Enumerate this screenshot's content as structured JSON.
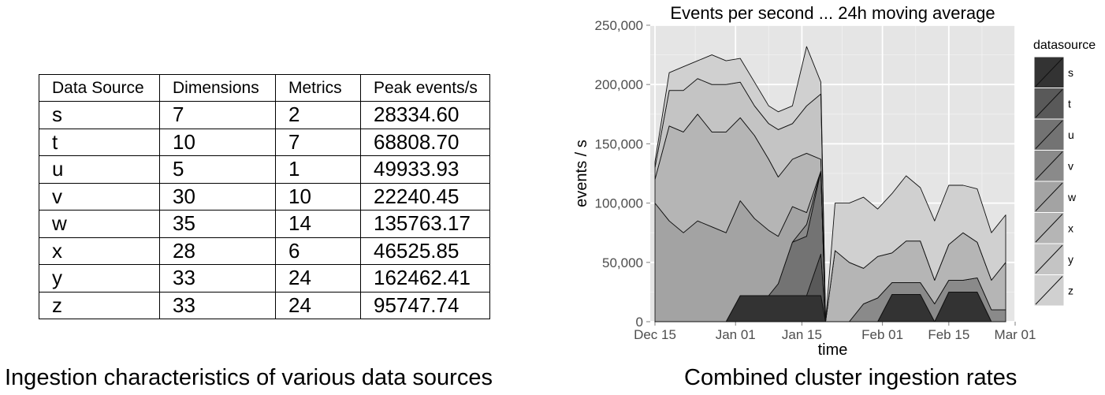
{
  "table": {
    "headers": [
      "Data Source",
      "Dimensions",
      "Metrics",
      "Peak events/s"
    ],
    "rows": [
      [
        "s",
        "7",
        "2",
        "28334.60"
      ],
      [
        "t",
        "10",
        "7",
        "68808.70"
      ],
      [
        "u",
        "5",
        "1",
        "49933.93"
      ],
      [
        "v",
        "30",
        "10",
        "22240.45"
      ],
      [
        "w",
        "35",
        "14",
        "135763.17"
      ],
      [
        "x",
        "28",
        "6",
        "46525.85"
      ],
      [
        "y",
        "33",
        "24",
        "162462.41"
      ],
      [
        "z",
        "33",
        "24",
        "95747.74"
      ]
    ]
  },
  "captions": {
    "left": "Ingestion characteristics of various data sources",
    "right": "Combined cluster ingestion rates"
  },
  "chart_data": {
    "type": "area",
    "stacked": true,
    "title": "Events per second ... 24h moving average",
    "xlabel": "time",
    "ylabel": "events / s",
    "ylim": [
      0,
      250000
    ],
    "xlim": [
      "2012-12-14",
      "2013-03-01"
    ],
    "x_ticks": [
      {
        "label": "Dec 15",
        "date": "2012-12-15"
      },
      {
        "label": "Jan 01",
        "date": "2013-01-01"
      },
      {
        "label": "Jan 15",
        "date": "2013-01-15"
      },
      {
        "label": "Feb 01",
        "date": "2013-02-01"
      },
      {
        "label": "Feb 15",
        "date": "2013-02-15"
      },
      {
        "label": "Mar 01",
        "date": "2013-03-01"
      }
    ],
    "y_ticks": [
      {
        "label": "0",
        "value": 0
      },
      {
        "label": "50,000",
        "value": 50000
      },
      {
        "label": "100,000",
        "value": 100000
      },
      {
        "label": "150,000",
        "value": 150000
      },
      {
        "label": "200,000",
        "value": 200000
      },
      {
        "label": "250,000",
        "value": 250000
      }
    ],
    "grid": true,
    "legend": {
      "title": "datasource",
      "position": "right"
    },
    "x": [
      "2012-12-15",
      "2012-12-18",
      "2012-12-21",
      "2012-12-24",
      "2012-12-27",
      "2012-12-30",
      "2013-01-02",
      "2013-01-05",
      "2013-01-08",
      "2013-01-10",
      "2013-01-13",
      "2013-01-16",
      "2013-01-19",
      "2013-01-20",
      "2013-01-22",
      "2013-01-25",
      "2013-01-28",
      "2013-01-31",
      "2013-02-03",
      "2013-02-06",
      "2013-02-09",
      "2013-02-12",
      "2013-02-15",
      "2013-02-18",
      "2013-02-21",
      "2013-02-24",
      "2013-02-27"
    ],
    "series": [
      {
        "name": "s",
        "color": "#333333",
        "values": [
          0,
          0,
          0,
          0,
          0,
          0,
          22000,
          22000,
          22000,
          22000,
          22000,
          22000,
          22000,
          0,
          0,
          0,
          0,
          0,
          23000,
          23000,
          23000,
          0,
          25000,
          25000,
          25000,
          0,
          0
        ]
      },
      {
        "name": "t",
        "color": "#595959",
        "values": [
          0,
          0,
          0,
          0,
          0,
          0,
          0,
          0,
          0,
          0,
          0,
          0,
          35000,
          0,
          0,
          0,
          0,
          0,
          0,
          0,
          0,
          0,
          0,
          0,
          0,
          0,
          0
        ]
      },
      {
        "name": "u",
        "color": "#737373",
        "values": [
          0,
          0,
          0,
          0,
          0,
          0,
          0,
          0,
          0,
          10000,
          45000,
          50000,
          70000,
          0,
          0,
          0,
          0,
          0,
          0,
          0,
          0,
          0,
          0,
          0,
          0,
          0,
          0
        ]
      },
      {
        "name": "v",
        "color": "#8a8a8a",
        "values": [
          0,
          0,
          0,
          0,
          0,
          0,
          0,
          0,
          0,
          0,
          0,
          10000,
          0,
          0,
          0,
          0,
          15000,
          20000,
          10000,
          10000,
          10000,
          15000,
          10000,
          10000,
          12000,
          10000,
          10000
        ]
      },
      {
        "name": "w",
        "color": "#a3a3a3",
        "values": [
          100000,
          85000,
          75000,
          85000,
          80000,
          75000,
          80000,
          65000,
          55000,
          40000,
          30000,
          10000,
          0,
          0,
          0,
          0,
          0,
          0,
          0,
          0,
          0,
          0,
          0,
          0,
          0,
          0,
          0
        ]
      },
      {
        "name": "x",
        "color": "#b5b5b5",
        "values": [
          20000,
          80000,
          85000,
          90000,
          80000,
          85000,
          70000,
          70000,
          60000,
          50000,
          40000,
          50000,
          10000,
          0,
          60000,
          50000,
          30000,
          35000,
          25000,
          35000,
          35000,
          20000,
          30000,
          40000,
          30000,
          25000,
          40000
        ]
      },
      {
        "name": "y",
        "color": "#c4c4c4",
        "values": [
          10000,
          30000,
          35000,
          30000,
          40000,
          40000,
          30000,
          25000,
          30000,
          40000,
          30000,
          40000,
          55000,
          0,
          0,
          0,
          0,
          0,
          0,
          0,
          0,
          0,
          0,
          0,
          0,
          0,
          0
        ]
      },
      {
        "name": "z",
        "color": "#d0d0d0",
        "values": [
          5000,
          15000,
          20000,
          15000,
          25000,
          20000,
          20000,
          20000,
          15000,
          15000,
          15000,
          50000,
          10000,
          0,
          40000,
          50000,
          60000,
          40000,
          50000,
          55000,
          45000,
          50000,
          50000,
          40000,
          45000,
          40000,
          40000
        ]
      }
    ]
  }
}
